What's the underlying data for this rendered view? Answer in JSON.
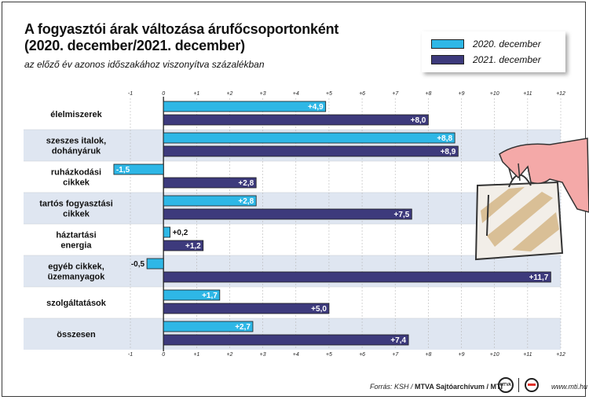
{
  "title": "A fogyasztói árak változása árufőcsoportonként\n(2020. december/2021. december)",
  "subtitle": "az előző év azonos időszakához viszonyítva százalékban",
  "footer": {
    "source_prefix": "Forrás: KSH / ",
    "source_strong": "MTVA Sajtóarchívum / MTI",
    "logo_mtva": "MTVA",
    "site": "www.mti.hu"
  },
  "colors": {
    "series_2020": "#2eb7e6",
    "series_2021": "#3d3a7c",
    "band_shaded": "#dfe6f1",
    "gridline": "#b8b8b8",
    "hand": "#f4a9a8",
    "bag_stripe": "#d9bf96"
  },
  "chart_data": {
    "type": "bar",
    "orientation": "horizontal",
    "categories": [
      "élelmiszerek",
      "szeszes italok,\ndohányáruk",
      "ruházkodási\ncikkek",
      "tartós fogyasztási\ncikkek",
      "háztartási\nenergia",
      "egyéb cikkek,\nüzemanyagok",
      "szolgáltatások",
      "összesen"
    ],
    "series": [
      {
        "name": "2020. december",
        "values": [
          4.9,
          8.8,
          -1.5,
          2.8,
          0.2,
          -0.5,
          1.7,
          2.7
        ],
        "labels": [
          "+4,9",
          "+8,8",
          "-1,5",
          "+2,8",
          "+0,2",
          "-0,5",
          "+1,7",
          "+2,7"
        ]
      },
      {
        "name": "2021. december",
        "values": [
          8.0,
          8.9,
          2.8,
          7.5,
          1.2,
          11.7,
          5.0,
          7.4
        ],
        "labels": [
          "+8,0",
          "+8,9",
          "+2,8",
          "+7,5",
          "+1,2",
          "+11,7",
          "+5,0",
          "+7,4"
        ]
      }
    ],
    "xlim": [
      -1,
      12
    ],
    "x_ticks": [
      -1,
      0,
      1,
      2,
      3,
      4,
      5,
      6,
      7,
      8,
      9,
      10,
      11,
      12
    ],
    "x_tick_labels": [
      "-1",
      "0",
      "+1",
      "+2",
      "+3",
      "+4",
      "+5",
      "+6",
      "+7",
      "+8",
      "+9",
      "+10",
      "+11",
      "+12"
    ],
    "xlabel": "",
    "ylabel": "",
    "grid": true,
    "legend": "top-right"
  }
}
